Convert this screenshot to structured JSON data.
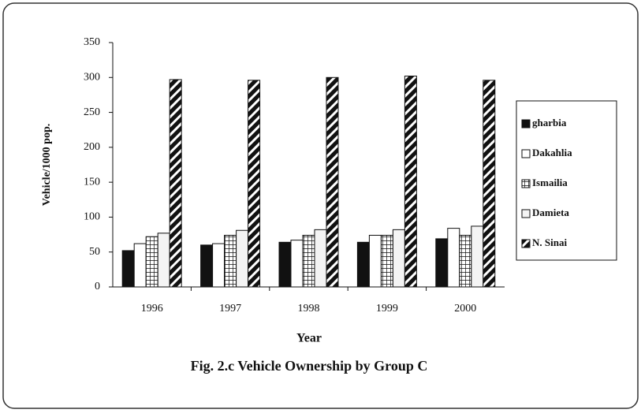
{
  "chart_data": {
    "type": "bar",
    "title": "Fig. 2.c Vehicle Ownership by Group C",
    "x_label": "Year",
    "y_label": "Vehicle/1000 pop.",
    "categories": [
      "1996",
      "1997",
      "1998",
      "1999",
      "2000"
    ],
    "series": [
      {
        "name": "gharbia",
        "color": "#111111",
        "pattern": "solid",
        "values": [
          52,
          60,
          64,
          64,
          69
        ]
      },
      {
        "name": "Dakahlia",
        "color": "#ffffff",
        "pattern": "solid",
        "values": [
          62,
          62,
          67,
          74,
          84
        ]
      },
      {
        "name": "Ismailia",
        "color": "#111111",
        "pattern": "grid",
        "values": [
          72,
          74,
          74,
          74,
          74
        ]
      },
      {
        "name": "Damieta",
        "color": "#f4f4f4",
        "pattern": "solid",
        "values": [
          77,
          81,
          82,
          82,
          87
        ]
      },
      {
        "name": "N. Sinai",
        "color": "#111111",
        "pattern": "diagonal",
        "values": [
          297,
          296,
          300,
          302,
          296
        ]
      }
    ],
    "ylim": [
      0,
      350
    ],
    "yticks": [
      0,
      50,
      100,
      150,
      200,
      250,
      300,
      350
    ],
    "grid": false,
    "legend": "right"
  }
}
